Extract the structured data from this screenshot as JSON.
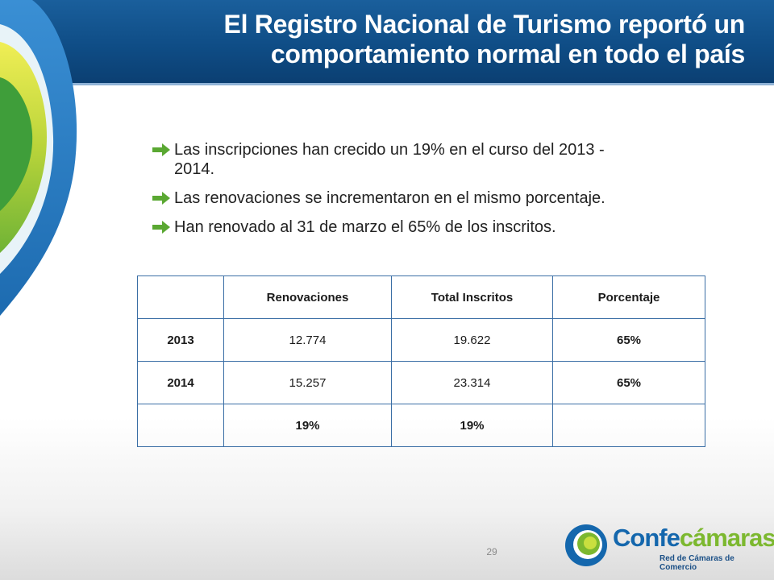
{
  "slide": {
    "title_line1": "El Registro Nacional de Turismo reportó un",
    "title_line2": "comportamiento normal en todo el país",
    "bullets": [
      {
        "text": "Las inscripciones han crecido un 19% en el curso del 2013 -",
        "text_cont": "2014."
      },
      {
        "text": "Las renovaciones se incrementaron en el mismo porcentaje."
      },
      {
        "text": "Han renovado al 31 de marzo el 65% de los inscritos."
      }
    ],
    "page_number": "29"
  },
  "table": {
    "header": [
      "",
      "Renovaciones",
      "Total Inscritos",
      "Porcentaje"
    ],
    "rows": [
      [
        "2013",
        "12.774",
        "19.622",
        "65%"
      ],
      [
        "2014",
        "15.257",
        "23.314",
        "65%"
      ],
      [
        "",
        "19%",
        "19%",
        ""
      ]
    ]
  },
  "logo": {
    "word_part1": "Confe",
    "word_part2": "cámaras",
    "tagline": "Red de Cámaras de Comercio"
  },
  "colors": {
    "header_blue": "#0f4d86",
    "bullet_arrow_green": "#5aa832",
    "table_border": "#3a6ea5",
    "logo_blue": "#1467ad",
    "logo_green": "#7cb82f"
  },
  "icons": {
    "bullet": "right-arrow-icon",
    "decoration": "swirl-graphic"
  }
}
